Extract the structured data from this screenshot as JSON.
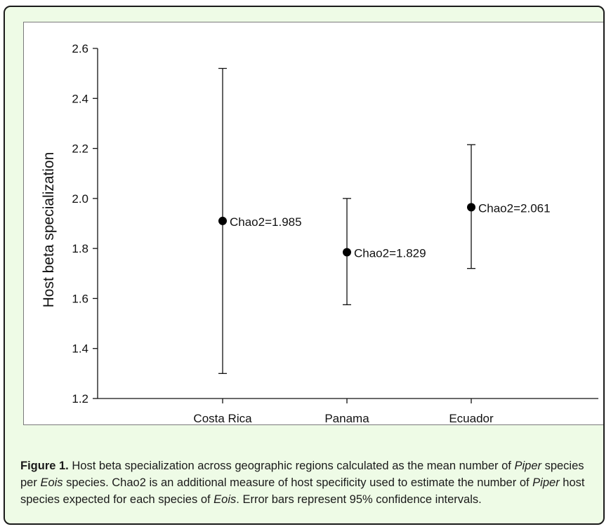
{
  "chart_data": {
    "type": "scatter",
    "ylabel": "Host beta specialization",
    "xlabel": "",
    "ylim": [
      1.2,
      2.6
    ],
    "yticks": [
      "1.2",
      "1.4",
      "1.6",
      "1.8",
      "2.0",
      "2.2",
      "2.4",
      "2.6"
    ],
    "categories": [
      "Costa Rica",
      "Panama",
      "Ecuador"
    ],
    "points": [
      {
        "category": "Costa Rica",
        "value": 1.91,
        "ci_low": 1.3,
        "ci_high": 2.52,
        "label": "Chao2=1.985"
      },
      {
        "category": "Panama",
        "value": 1.785,
        "ci_low": 1.575,
        "ci_high": 2.0,
        "label": "Chao2=1.829"
      },
      {
        "category": "Ecuador",
        "value": 1.965,
        "ci_low": 1.72,
        "ci_high": 2.215,
        "label": "Chao2=2.061"
      }
    ],
    "grid": false,
    "error_bars": "95% confidence intervals"
  },
  "caption": {
    "label": "Figure 1.",
    "s1": " Host beta specialization across geographic regions calculated as the mean number of ",
    "piper1": "Piper",
    "s2": " species per ",
    "eois1": "Eois",
    "s3": " species. Chao2 is an additional measure of host specificity used to estimate the number of ",
    "piper2": "Piper",
    "s4": " host species expected for each species of ",
    "eois2": "Eois",
    "s5": ". Error bars represent 95% confidence intervals."
  }
}
